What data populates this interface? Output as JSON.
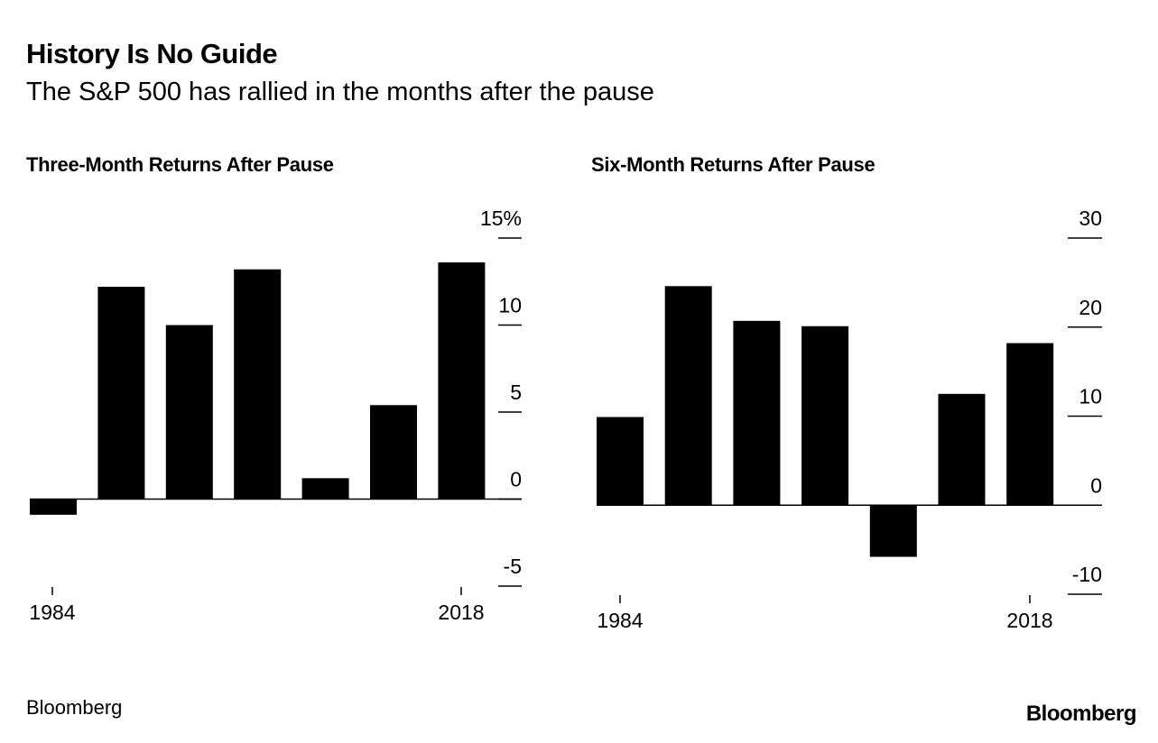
{
  "title": "History Is No Guide",
  "subtitle": "The S&P 500 has rallied in the months after the pause",
  "source": "Bloomberg",
  "logo": "Bloomberg",
  "chart_data": [
    {
      "type": "bar",
      "title": "Three-Month Returns After Pause",
      "x_tick_labels": [
        "1984",
        "2018"
      ],
      "values": [
        -0.9,
        12.2,
        10.0,
        13.2,
        1.2,
        5.4,
        13.6
      ],
      "ylim": [
        -5,
        15
      ],
      "y_ticks": [
        15,
        10,
        5,
        0,
        -5
      ],
      "y_tick_labels": [
        "15%",
        "10",
        "5",
        "0",
        "-5"
      ],
      "bar_color": "#000000"
    },
    {
      "type": "bar",
      "title": "Six-Month Returns After Pause",
      "x_tick_labels": [
        "1984",
        "2018"
      ],
      "values": [
        9.9,
        24.6,
        20.7,
        20.1,
        -5.8,
        12.5,
        18.2
      ],
      "ylim": [
        -10,
        30
      ],
      "y_ticks": [
        30,
        20,
        10,
        0,
        -10
      ],
      "y_tick_labels": [
        "30",
        "20",
        "10",
        "0",
        "-10"
      ],
      "bar_color": "#000000"
    }
  ]
}
